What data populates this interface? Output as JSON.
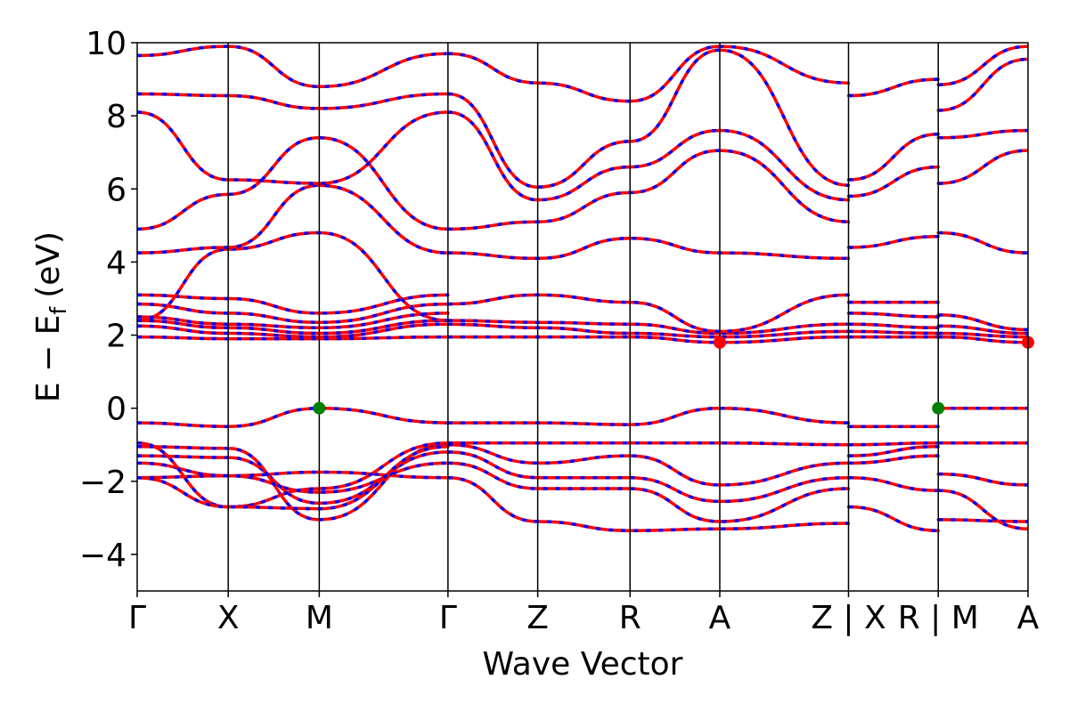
{
  "chart_data": {
    "type": "line",
    "title": "",
    "xlabel": "Wave Vector",
    "ylabel": {
      "main": "E − E",
      "sub": "f",
      "unit": "(eV)"
    },
    "ylim": [
      -5,
      10
    ],
    "y_ticks": [
      {
        "value": -4,
        "label": "−4"
      },
      {
        "value": -2,
        "label": "−2"
      },
      {
        "value": 0,
        "label": "0"
      },
      {
        "value": 2,
        "label": "2"
      },
      {
        "value": 4,
        "label": "4"
      },
      {
        "value": 6,
        "label": "6"
      },
      {
        "value": 8,
        "label": "8"
      },
      {
        "value": 10,
        "label": "10"
      }
    ],
    "k_path": [
      {
        "label": "Γ",
        "k": 0.0
      },
      {
        "label": "X",
        "k": 0.5
      },
      {
        "label": "M",
        "k": 1.0
      },
      {
        "label": "Γ",
        "k": 1.707
      },
      {
        "label": "Z",
        "k": 2.2
      },
      {
        "label": "R",
        "k": 2.707
      },
      {
        "label": "A",
        "k": 3.2
      },
      {
        "label": "Z | X",
        "k": 3.907
      },
      {
        "label": "R | M",
        "k": 4.4
      },
      {
        "label": "A",
        "k": 4.893
      }
    ],
    "xlim": [
      0,
      4.893
    ],
    "band_colors": {
      "solid": "#ff0000",
      "dashed": "#0000ff"
    },
    "vbm_points": [
      {
        "k": 1.0,
        "e": 0.0
      },
      {
        "k": 4.4,
        "e": 0.0
      }
    ],
    "cbm_points": [
      {
        "k": 3.2,
        "e": 1.8
      },
      {
        "k": 4.893,
        "e": 1.8
      }
    ],
    "marker_colors": {
      "vbm": "#008000",
      "cbm": "#ff0000"
    },
    "segments": [
      {
        "range": [
          0,
          1.707
        ],
        "bands": [
          [
            [
              0,
              -1.9
            ],
            [
              0.5,
              -1.85
            ],
            [
              1.0,
              -1.75
            ],
            [
              1.707,
              -1.9
            ]
          ],
          [
            [
              0,
              -1.5
            ],
            [
              0.5,
              -1.85
            ],
            [
              1.0,
              -2.3
            ],
            [
              1.707,
              -1.5
            ]
          ],
          [
            [
              0,
              -1.3
            ],
            [
              0.5,
              -1.35
            ],
            [
              1.0,
              -2.6
            ],
            [
              1.707,
              -1.2
            ]
          ],
          [
            [
              0,
              -1.05
            ],
            [
              0.5,
              -1.1
            ],
            [
              1.0,
              -3.05
            ],
            [
              1.707,
              -1.0
            ]
          ],
          [
            [
              0,
              -0.95
            ],
            [
              0.5,
              -2.7
            ],
            [
              1.0,
              -2.2
            ],
            [
              1.707,
              -0.95
            ]
          ],
          [
            [
              0,
              -0.4
            ],
            [
              0.5,
              -0.5
            ],
            [
              1.0,
              0.0
            ],
            [
              1.707,
              -0.4
            ]
          ],
          [
            [
              0,
              -1.9
            ],
            [
              0.5,
              -2.7
            ],
            [
              1.0,
              -2.75
            ],
            [
              1.707,
              -1.05
            ]
          ],
          [
            [
              0,
              1.95
            ],
            [
              0.5,
              1.9
            ],
            [
              1.0,
              1.9
            ],
            [
              1.707,
              1.95
            ]
          ],
          [
            [
              0,
              2.25
            ],
            [
              0.5,
              2.05
            ],
            [
              1.0,
              1.95
            ],
            [
              1.707,
              2.3
            ]
          ],
          [
            [
              0,
              2.4
            ],
            [
              0.5,
              2.2
            ],
            [
              1.0,
              2.05
            ],
            [
              1.707,
              2.4
            ]
          ],
          [
            [
              0,
              2.5
            ],
            [
              0.5,
              2.3
            ],
            [
              1.0,
              2.2
            ],
            [
              1.707,
              2.6
            ]
          ],
          [
            [
              0,
              2.85
            ],
            [
              0.5,
              2.6
            ],
            [
              1.0,
              2.35
            ],
            [
              1.707,
              2.85
            ]
          ],
          [
            [
              0,
              3.1
            ],
            [
              0.5,
              3.0
            ],
            [
              1.0,
              2.6
            ],
            [
              1.707,
              3.1
            ]
          ],
          [
            [
              0,
              2.4
            ],
            [
              0.5,
              4.35
            ],
            [
              1.0,
              4.8
            ],
            [
              1.707,
              2.4
            ]
          ],
          [
            [
              0,
              4.25
            ],
            [
              0.5,
              4.4
            ],
            [
              1.0,
              6.1
            ],
            [
              1.707,
              4.25
            ]
          ],
          [
            [
              0,
              4.9
            ],
            [
              0.5,
              5.85
            ],
            [
              1.0,
              7.4
            ],
            [
              1.707,
              4.9
            ]
          ],
          [
            [
              0,
              8.1
            ],
            [
              0.5,
              6.25
            ],
            [
              1.0,
              6.15
            ],
            [
              1.707,
              8.1
            ]
          ],
          [
            [
              0,
              8.6
            ],
            [
              0.5,
              8.55
            ],
            [
              1.0,
              8.2
            ],
            [
              1.707,
              8.6
            ]
          ],
          [
            [
              0,
              9.65
            ],
            [
              0.5,
              9.9
            ],
            [
              1.0,
              8.8
            ],
            [
              1.707,
              9.7
            ]
          ]
        ]
      },
      {
        "range": [
          1.707,
          3.907
        ],
        "bands": [
          [
            [
              1.707,
              -1.9
            ],
            [
              2.2,
              -3.1
            ],
            [
              2.707,
              -3.35
            ],
            [
              3.2,
              -3.3
            ],
            [
              3.907,
              -3.15
            ]
          ],
          [
            [
              1.707,
              -1.5
            ],
            [
              2.2,
              -2.2
            ],
            [
              2.707,
              -2.2
            ],
            [
              3.2,
              -3.1
            ],
            [
              3.907,
              -2.2
            ]
          ],
          [
            [
              1.707,
              -1.2
            ],
            [
              2.2,
              -1.9
            ],
            [
              2.707,
              -1.9
            ],
            [
              3.2,
              -2.55
            ],
            [
              3.907,
              -1.9
            ]
          ],
          [
            [
              1.707,
              -1.0
            ],
            [
              2.2,
              -1.5
            ],
            [
              2.707,
              -1.3
            ],
            [
              3.2,
              -2.1
            ],
            [
              3.907,
              -1.5
            ]
          ],
          [
            [
              1.707,
              -0.95
            ],
            [
              2.2,
              -0.95
            ],
            [
              2.707,
              -0.95
            ],
            [
              3.2,
              -0.95
            ],
            [
              3.907,
              -1.0
            ]
          ],
          [
            [
              1.707,
              -0.4
            ],
            [
              2.2,
              -0.4
            ],
            [
              2.707,
              -0.45
            ],
            [
              3.2,
              0.0
            ],
            [
              3.907,
              -0.4
            ]
          ],
          [
            [
              1.707,
              1.95
            ],
            [
              2.2,
              1.95
            ],
            [
              2.707,
              1.95
            ],
            [
              3.2,
              1.8
            ],
            [
              3.907,
              1.95
            ]
          ],
          [
            [
              1.707,
              2.3
            ],
            [
              2.2,
              2.2
            ],
            [
              2.707,
              2.05
            ],
            [
              3.2,
              1.95
            ],
            [
              3.907,
              2.1
            ]
          ],
          [
            [
              1.707,
              2.4
            ],
            [
              2.2,
              2.35
            ],
            [
              2.707,
              2.3
            ],
            [
              3.2,
              2.05
            ],
            [
              3.907,
              2.3
            ]
          ],
          [
            [
              1.707,
              2.85
            ],
            [
              2.2,
              3.1
            ],
            [
              2.707,
              2.9
            ],
            [
              3.2,
              2.1
            ],
            [
              3.907,
              3.1
            ]
          ],
          [
            [
              1.707,
              4.25
            ],
            [
              2.2,
              4.1
            ],
            [
              2.707,
              4.65
            ],
            [
              3.2,
              4.25
            ],
            [
              3.907,
              4.1
            ]
          ],
          [
            [
              1.707,
              4.9
            ],
            [
              2.2,
              5.1
            ],
            [
              2.707,
              5.9
            ],
            [
              3.2,
              7.05
            ],
            [
              3.907,
              5.1
            ]
          ],
          [
            [
              1.707,
              8.1
            ],
            [
              2.2,
              5.7
            ],
            [
              2.707,
              6.6
            ],
            [
              3.2,
              7.6
            ],
            [
              3.907,
              5.7
            ]
          ],
          [
            [
              1.707,
              8.6
            ],
            [
              2.2,
              6.05
            ],
            [
              2.707,
              7.3
            ],
            [
              3.2,
              9.8
            ],
            [
              3.907,
              6.1
            ]
          ],
          [
            [
              1.707,
              9.7
            ],
            [
              2.2,
              8.9
            ],
            [
              2.707,
              8.4
            ],
            [
              3.2,
              9.9
            ],
            [
              3.907,
              8.9
            ]
          ]
        ]
      },
      {
        "range": [
          3.907,
          4.4
        ],
        "bands": [
          [
            [
              3.907,
              -2.7
            ],
            [
              4.4,
              -3.35
            ]
          ],
          [
            [
              3.907,
              -1.9
            ],
            [
              4.4,
              -2.25
            ]
          ],
          [
            [
              3.907,
              -1.5
            ],
            [
              4.4,
              -1.3
            ]
          ],
          [
            [
              3.907,
              -1.3
            ],
            [
              4.4,
              -1.05
            ]
          ],
          [
            [
              3.907,
              -1.0
            ],
            [
              4.4,
              -0.95
            ]
          ],
          [
            [
              3.907,
              -0.5
            ],
            [
              4.4,
              -0.5
            ]
          ],
          [
            [
              3.907,
              1.95
            ],
            [
              4.4,
              1.95
            ]
          ],
          [
            [
              3.907,
              2.1
            ],
            [
              4.4,
              2.05
            ]
          ],
          [
            [
              3.907,
              2.3
            ],
            [
              4.4,
              2.2
            ]
          ],
          [
            [
              3.907,
              2.6
            ],
            [
              4.4,
              2.5
            ]
          ],
          [
            [
              3.907,
              2.9
            ],
            [
              4.4,
              2.9
            ]
          ],
          [
            [
              3.907,
              4.4
            ],
            [
              4.4,
              4.7
            ]
          ],
          [
            [
              3.907,
              5.8
            ],
            [
              4.4,
              6.6
            ]
          ],
          [
            [
              3.907,
              6.25
            ],
            [
              4.4,
              7.5
            ]
          ],
          [
            [
              3.907,
              8.55
            ],
            [
              4.4,
              9.0
            ]
          ]
        ]
      },
      {
        "range": [
          4.4,
          4.893
        ],
        "bands": [
          [
            [
              4.4,
              -3.05
            ],
            [
              4.893,
              -3.1
            ]
          ],
          [
            [
              4.4,
              -2.25
            ],
            [
              4.893,
              -3.3
            ]
          ],
          [
            [
              4.4,
              -1.8
            ],
            [
              4.893,
              -2.1
            ]
          ],
          [
            [
              4.4,
              -0.95
            ],
            [
              4.893,
              -0.95
            ]
          ],
          [
            [
              4.4,
              0.0
            ],
            [
              4.893,
              0.0
            ]
          ],
          [
            [
              4.4,
              1.95
            ],
            [
              4.893,
              1.8
            ]
          ],
          [
            [
              4.4,
              2.05
            ],
            [
              4.893,
              1.95
            ]
          ],
          [
            [
              4.4,
              2.25
            ],
            [
              4.893,
              2.05
            ]
          ],
          [
            [
              4.4,
              2.55
            ],
            [
              4.893,
              2.15
            ]
          ],
          [
            [
              4.4,
              4.8
            ],
            [
              4.893,
              4.25
            ]
          ],
          [
            [
              4.4,
              6.15
            ],
            [
              4.893,
              7.05
            ]
          ],
          [
            [
              4.4,
              7.4
            ],
            [
              4.893,
              7.6
            ]
          ],
          [
            [
              4.4,
              8.15
            ],
            [
              4.893,
              9.55
            ]
          ],
          [
            [
              4.4,
              8.85
            ],
            [
              4.893,
              9.9
            ]
          ]
        ]
      }
    ]
  }
}
